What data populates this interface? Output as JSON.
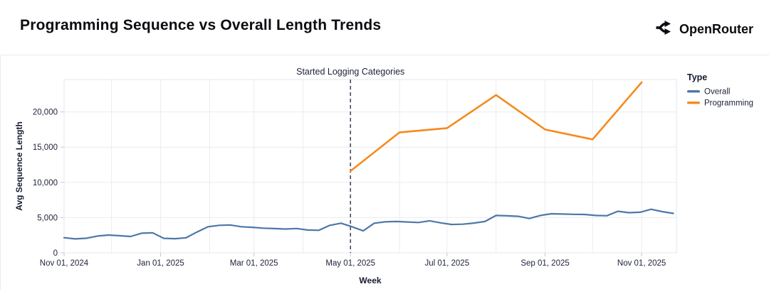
{
  "header": {
    "title": "Programming Sequence vs Overall Length Trends",
    "brand": "OpenRouter"
  },
  "chart_data": {
    "type": "line",
    "title": "Programming Sequence vs Overall Length Trends",
    "xlabel": "Week",
    "ylabel": "Avg Sequence Length",
    "x_domain": [
      "2024-11-01",
      "2025-11-23"
    ],
    "ylim": [
      0,
      24600
    ],
    "grid": true,
    "y_ticks": [
      0,
      5000,
      10000,
      15000,
      20000
    ],
    "y_tick_labels": [
      "0",
      "5,000",
      "10,000",
      "15,000",
      "20,000"
    ],
    "x_ticks": [
      {
        "date": "2024-11-01",
        "label": "Nov 01, 2024"
      },
      {
        "date": "2025-01-01",
        "label": "Jan 01, 2025"
      },
      {
        "date": "2025-03-01",
        "label": "Mar 01, 2025"
      },
      {
        "date": "2025-05-01",
        "label": "May 01, 2025"
      },
      {
        "date": "2025-07-01",
        "label": "Jul 01, 2025"
      },
      {
        "date": "2025-09-01",
        "label": "Sep 01, 2025"
      },
      {
        "date": "2025-11-01",
        "label": "Nov 01, 2025"
      }
    ],
    "annotation": {
      "label": "Started Logging Categories",
      "date": "2025-05-01",
      "style": "dashed-vertical-rule",
      "color": "#474a5c"
    },
    "legend": {
      "title": "Type",
      "position": "right"
    },
    "series": [
      {
        "name": "Overall",
        "color": "#4c78a8",
        "x": [
          "2024-11-01",
          "2024-11-08",
          "2024-11-15",
          "2024-11-22",
          "2024-11-29",
          "2024-12-06",
          "2024-12-13",
          "2024-12-20",
          "2024-12-27",
          "2025-01-03",
          "2025-01-10",
          "2025-01-17",
          "2025-01-24",
          "2025-01-31",
          "2025-02-07",
          "2025-02-14",
          "2025-02-21",
          "2025-02-28",
          "2025-03-07",
          "2025-03-14",
          "2025-03-21",
          "2025-03-28",
          "2025-04-04",
          "2025-04-11",
          "2025-04-18",
          "2025-04-25",
          "2025-05-02",
          "2025-05-09",
          "2025-05-16",
          "2025-05-23",
          "2025-05-30",
          "2025-06-06",
          "2025-06-13",
          "2025-06-20",
          "2025-06-27",
          "2025-07-04",
          "2025-07-11",
          "2025-07-18",
          "2025-07-25",
          "2025-08-01",
          "2025-08-08",
          "2025-08-15",
          "2025-08-22",
          "2025-08-29",
          "2025-09-05",
          "2025-09-12",
          "2025-09-19",
          "2025-09-26",
          "2025-10-03",
          "2025-10-10",
          "2025-10-17",
          "2025-10-24",
          "2025-10-31",
          "2025-11-07",
          "2025-11-14",
          "2025-11-21"
        ],
        "values": [
          2150,
          1980,
          2070,
          2380,
          2520,
          2430,
          2320,
          2780,
          2840,
          2060,
          2010,
          2130,
          2950,
          3700,
          3900,
          3950,
          3700,
          3620,
          3500,
          3440,
          3380,
          3450,
          3240,
          3200,
          3900,
          4200,
          3700,
          3120,
          4200,
          4400,
          4450,
          4380,
          4300,
          4550,
          4250,
          4020,
          4060,
          4220,
          4450,
          5300,
          5250,
          5180,
          4870,
          5300,
          5550,
          5500,
          5460,
          5440,
          5300,
          5260,
          5900,
          5700,
          5760,
          6180,
          5850,
          5600
        ]
      },
      {
        "name": "Programming",
        "color": "#f58a1c",
        "x": [
          "2025-05-01",
          "2025-06-01",
          "2025-07-01",
          "2025-08-01",
          "2025-09-01",
          "2025-10-01",
          "2025-11-01"
        ],
        "values": [
          11600,
          17100,
          17700,
          22400,
          17500,
          16100,
          24200
        ]
      }
    ]
  }
}
